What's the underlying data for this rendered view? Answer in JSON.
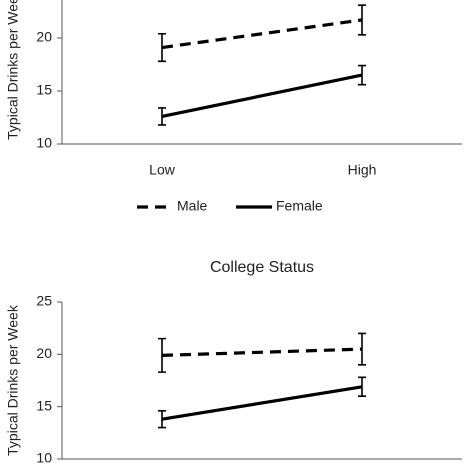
{
  "charts": [
    {
      "chart_data": {
        "type": "line",
        "ylabel": "Typical Drinks per Week",
        "categories": [
          "Low",
          "High"
        ],
        "series": [
          {
            "name": "Male",
            "linestyle": "dashed",
            "color": "#000000",
            "values": [
              19.1,
              21.7
            ],
            "errors": [
              1.3,
              1.4
            ]
          },
          {
            "name": "Female",
            "linestyle": "solid",
            "color": "#000000",
            "values": [
              12.6,
              16.5
            ],
            "errors": [
              0.8,
              0.9
            ]
          }
        ],
        "ylim": [
          10,
          25
        ],
        "yticks": [
          10,
          15,
          20
        ]
      }
    },
    {
      "chart_data": {
        "type": "line",
        "title": "College Status",
        "ylabel": "Typical Drinks per Week",
        "series": [
          {
            "linestyle": "dashed",
            "color": "#000000",
            "values": [
              19.9,
              20.5
            ],
            "errors": [
              1.6,
              1.5
            ]
          },
          {
            "linestyle": "solid",
            "color": "#000000",
            "values": [
              13.8,
              16.9
            ],
            "errors": [
              0.8,
              0.9
            ]
          }
        ],
        "ylim": [
          10,
          25
        ],
        "yticks": [
          10,
          15,
          20,
          25
        ]
      }
    }
  ]
}
